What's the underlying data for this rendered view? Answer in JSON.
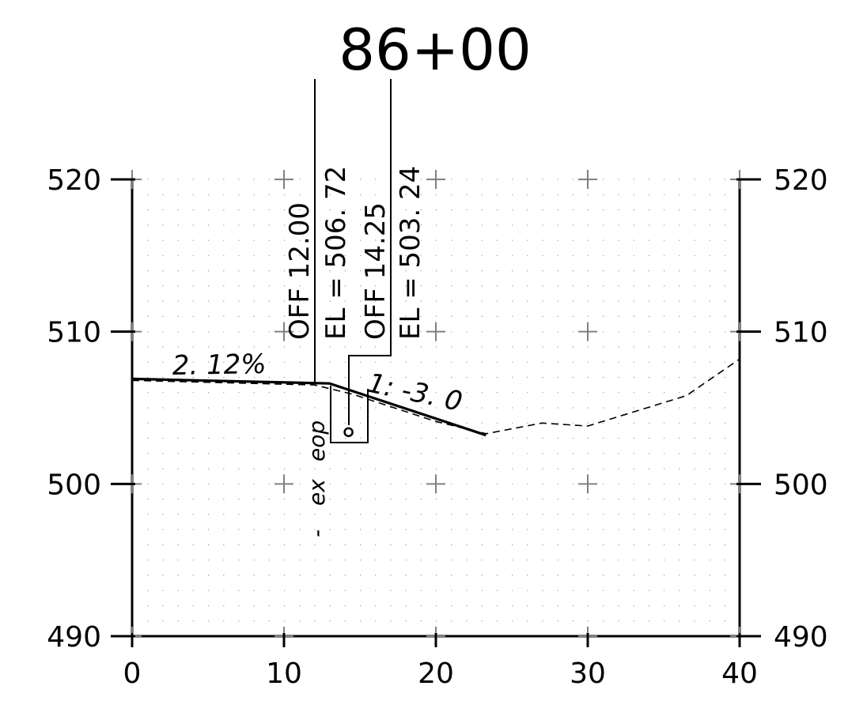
{
  "title": "86+00",
  "chart_data": {
    "type": "line",
    "xlim": [
      0,
      40
    ],
    "ylim": [
      490,
      520
    ],
    "x_ticks": [
      "0",
      "10",
      "20",
      "30",
      "40"
    ],
    "y_ticks": [
      "490",
      "500",
      "510",
      "520"
    ],
    "grid": "dotted",
    "series": [
      {
        "style": "solid",
        "x": [
          0,
          13.0,
          23.3
        ],
        "y": [
          506.9,
          506.6,
          503.2
        ]
      },
      {
        "style": "dashed",
        "x": [
          0,
          12.0,
          14.5,
          20.0,
          23.3,
          27.0,
          30.0,
          36.5,
          40.0
        ],
        "y": [
          506.8,
          506.5,
          505.9,
          504.1,
          503.3,
          504.0,
          503.8,
          505.8,
          508.2
        ]
      }
    ],
    "annotations": [
      {
        "text": "2. 12%",
        "x": 4.5,
        "y": 507.3
      },
      {
        "text": "1: -3. 0",
        "x": 18.5,
        "y": 505.0
      },
      {
        "text": "OFF 12.00",
        "x": 11.4,
        "y": 509.8
      },
      {
        "text": "EL = 506. 72",
        "x": 13.5,
        "y": 509.8
      },
      {
        "text": "OFF 14.25",
        "x": 16.4,
        "y": 509.8
      },
      {
        "text": "EL = 503. 24",
        "x": 18.5,
        "y": 509.8
      },
      {
        "text": "eop",
        "x": 12.2,
        "y": 502.2
      },
      {
        "text": "ex",
        "x": 12.2,
        "y": 500.5
      },
      {
        "text": "-",
        "x": 12.2,
        "y": 499.0
      }
    ],
    "markers": [
      {
        "name": "circle",
        "x": 14.25,
        "y": 503.4
      }
    ]
  },
  "labels": {
    "off1": "OFF 12.00",
    "el1": "EL = 506. 72",
    "off2": "OFF 14.25",
    "el2": "EL = 503. 24",
    "slope1": "2. 12%",
    "slope2": "1: -3. 0",
    "eop": "eop",
    "ex": "ex",
    "dash": "-"
  }
}
